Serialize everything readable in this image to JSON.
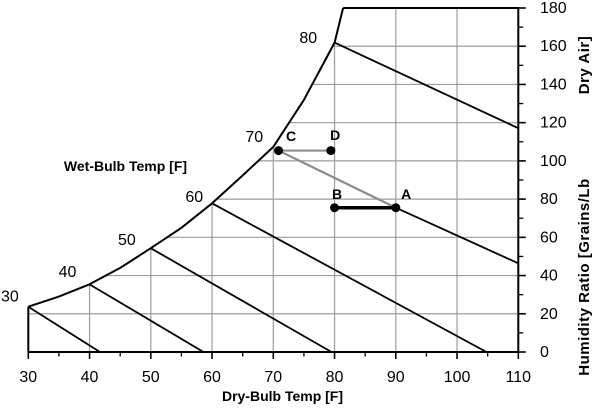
{
  "chart_data": {
    "type": "line",
    "description": "Psychrometric chart with process points",
    "x_axis": {
      "label": "Dry-Bulb Temp [F]",
      "range": [
        30,
        110
      ],
      "major_ticks": [
        30,
        40,
        50,
        60,
        70,
        80,
        90,
        100,
        110
      ],
      "minor_ticks": [
        35,
        45,
        55,
        65,
        75,
        85,
        95,
        105
      ],
      "tick_labels": [
        "30",
        "40",
        "50",
        "60",
        "70",
        "80",
        "90",
        "100",
        "110"
      ]
    },
    "y_axis": {
      "label": "Humidity Ratio [Grains/Lb Dry Air]",
      "label_parts": [
        "Humidity Ratio [Grains/Lb",
        "Dry Air]"
      ],
      "side": "right",
      "range": [
        0,
        180
      ],
      "major_ticks": [
        0,
        20,
        40,
        60,
        80,
        100,
        120,
        140,
        160,
        180
      ],
      "minor_ticks": [
        10,
        30,
        50,
        70,
        90,
        110,
        130,
        150,
        170
      ],
      "tick_labels": [
        "0",
        "20",
        "40",
        "60",
        "80",
        "100",
        "120",
        "140",
        "160",
        "180"
      ]
    },
    "wet_bulb_axis_label": "Wet-Bulb Temp [F]",
    "saturation_curve": [
      [
        30,
        23.7
      ],
      [
        35,
        29.0
      ],
      [
        40,
        35.4
      ],
      [
        45,
        44.0
      ],
      [
        50,
        54.3
      ],
      [
        55,
        65.0
      ],
      [
        60,
        77.8
      ],
      [
        65,
        92.4
      ],
      [
        70,
        107.3
      ],
      [
        75,
        131.9
      ],
      [
        80,
        161.9
      ],
      [
        81.4,
        180.0
      ]
    ],
    "wet_bulb_lines": [
      {
        "label": "30",
        "from": [
          30,
          23.7
        ],
        "to": [
          41.7,
          0
        ],
        "label_at": [
          27.0,
          29.0
        ]
      },
      {
        "label": "40",
        "from": [
          40,
          35.4
        ],
        "to": [
          58.6,
          0
        ],
        "label_at": [
          36.4,
          41.9
        ]
      },
      {
        "label": "50",
        "from": [
          50,
          54.3
        ],
        "to": [
          79.5,
          0
        ],
        "label_at": [
          46.1,
          58.6
        ]
      },
      {
        "label": "60",
        "from": [
          60,
          77.8
        ],
        "to": [
          104.8,
          0
        ],
        "label_at": [
          57.1,
          81.1
        ]
      },
      {
        "label": "70",
        "from": [
          90,
          75.5
        ],
        "to": [
          110,
          46.4
        ],
        "label_at": [
          66.9,
          112.5
        ]
      },
      {
        "label": "80",
        "from": [
          80,
          161.9
        ],
        "to": [
          110,
          117.1
        ],
        "label_at": [
          75.7,
          164.3
        ]
      }
    ],
    "points": [
      {
        "label": "A",
        "at": [
          90,
          75.5
        ],
        "label_at": [
          91.7,
          82.7
        ]
      },
      {
        "label": "B",
        "at": [
          80,
          75.5
        ],
        "label_at": [
          80.4,
          82.7
        ]
      },
      {
        "label": "C",
        "at": [
          70.85,
          105.4
        ],
        "label_at": [
          72.9,
          113.0
        ]
      },
      {
        "label": "D",
        "at": [
          79.4,
          105.4
        ],
        "label_at": [
          80.1,
          113.5
        ]
      }
    ],
    "process_lines": [
      {
        "name": "C-D",
        "from": [
          70.85,
          105.4
        ],
        "to": [
          79.4,
          105.4
        ],
        "color": "#8a8a8a",
        "width": 2
      },
      {
        "name": "C-A",
        "from": [
          70.85,
          105.4
        ],
        "to": [
          90,
          75.5
        ],
        "color": "#8a8a8a",
        "width": 2.2
      },
      {
        "name": "B-A",
        "from": [
          80,
          75.5
        ],
        "to": [
          90,
          75.5
        ],
        "color": "#000000",
        "width": 3.5
      }
    ],
    "grid": {
      "vertical_at": [
        40,
        50,
        60,
        70,
        80,
        90,
        100
      ],
      "horizontal_at": [
        20,
        40,
        60,
        80,
        100,
        120,
        140,
        160
      ],
      "color": "#9c9c9c"
    },
    "colors": {
      "line": "#000000",
      "grid": "#9c9c9c",
      "process_gray": "#8a8a8a",
      "background": "#ffffff"
    }
  }
}
